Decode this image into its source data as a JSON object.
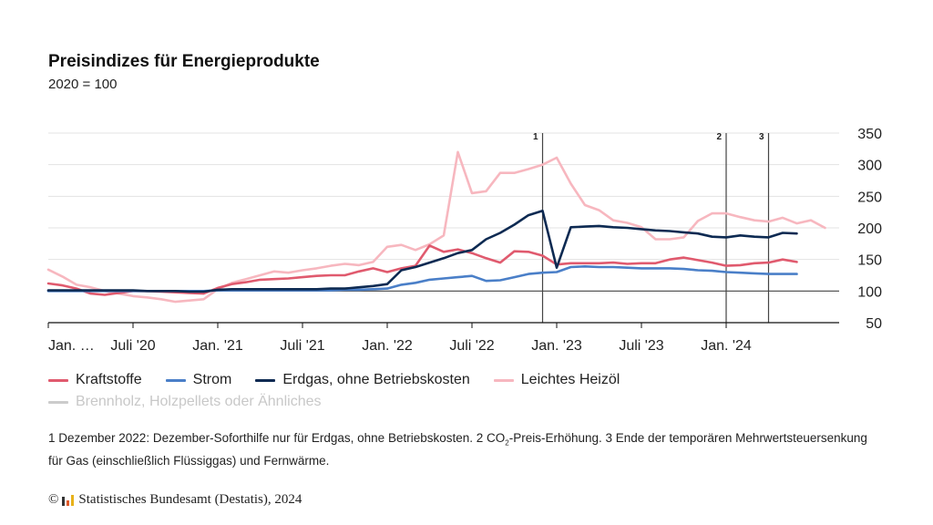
{
  "title": "Preisindizes für Energieprodukte",
  "subtitle": "2020 = 100",
  "legend": [
    {
      "label": "Kraftstoffe",
      "color": "#e05a6e"
    },
    {
      "label": "Strom",
      "color": "#4a7fc8"
    },
    {
      "label": "Erdgas, ohne Betriebskosten",
      "color": "#0d2a52"
    },
    {
      "label": "Leichtes Heizöl",
      "color": "#f7b7bf"
    },
    {
      "label": "Brennholz, Holzpellets oder Ähnliches",
      "color": "#cccccc"
    }
  ],
  "footnote": {
    "part1": "1 Dezember 2022: Dezember-Soforthilfe nur für Erdgas, ohne Betriebskosten. 2 CO",
    "sub": "2",
    "part2": "-Preis-Erhöhung. 3 Ende der temporären Mehrwertsteuersenkung für Gas (einschließlich Flüssiggas) und Fernwärme."
  },
  "source": {
    "copyright": "©",
    "text": "Statistisches Bundesamt (Destatis), 2024"
  },
  "chart_data": {
    "type": "line",
    "x_start": "2020-01",
    "x_ticks": [
      {
        "label": "Jan. …",
        "month": 0
      },
      {
        "label": "Juli '20",
        "month": 6
      },
      {
        "label": "Jan. '21",
        "month": 12
      },
      {
        "label": "Juli '21",
        "month": 18
      },
      {
        "label": "Jan. '22",
        "month": 24
      },
      {
        "label": "Juli '22",
        "month": 30
      },
      {
        "label": "Jan. '23",
        "month": 36
      },
      {
        "label": "Juli '23",
        "month": 42
      },
      {
        "label": "Jan. '24",
        "month": 48
      }
    ],
    "ylim": [
      50,
      350
    ],
    "yticks": [
      50,
      100,
      150,
      200,
      250,
      300,
      350
    ],
    "grid": true,
    "annotations": [
      {
        "label": "1",
        "month": 35
      },
      {
        "label": "2",
        "month": 48
      },
      {
        "label": "3",
        "month": 51
      }
    ],
    "series": [
      {
        "name": "Leichtes Heizöl",
        "color": "#f7b7bf",
        "values": [
          134,
          123,
          110,
          106,
          100,
          96,
          92,
          90,
          87,
          83,
          85,
          87,
          103,
          113,
          119,
          125,
          131,
          129,
          133,
          136,
          140,
          143,
          141,
          146,
          170,
          173,
          165,
          174,
          188,
          320,
          255,
          258,
          287,
          287,
          293,
          300,
          311,
          270,
          236,
          228,
          212,
          208,
          201,
          182,
          182,
          185,
          211,
          223,
          223,
          217,
          212,
          210,
          216,
          207,
          212,
          200
        ]
      },
      {
        "name": "Kraftstoffe",
        "color": "#e05a6e",
        "values": [
          112,
          109,
          104,
          96,
          94,
          97,
          100,
          100,
          99,
          98,
          97,
          96,
          105,
          111,
          114,
          118,
          119,
          120,
          122,
          124,
          125,
          125,
          131,
          136,
          130,
          136,
          140,
          172,
          162,
          166,
          160,
          152,
          145,
          163,
          162,
          156,
          142,
          144,
          144,
          144,
          145,
          143,
          144,
          144,
          150,
          153,
          149,
          145,
          140,
          141,
          144,
          145,
          150,
          146
        ]
      },
      {
        "name": "Strom",
        "color": "#4a7fc8",
        "values": [
          100,
          100,
          100,
          100,
          100,
          100,
          100,
          100,
          100,
          100,
          100,
          100,
          101,
          101,
          101,
          101,
          101,
          101,
          101,
          101,
          101,
          102,
          102,
          103,
          104,
          110,
          113,
          118,
          120,
          122,
          124,
          116,
          117,
          122,
          127,
          129,
          130,
          138,
          139,
          138,
          138,
          137,
          136,
          136,
          136,
          135,
          133,
          132,
          130,
          129,
          128,
          127,
          127,
          127
        ]
      },
      {
        "name": "Erdgas, ohne Betriebskosten",
        "color": "#0d2a52",
        "values": [
          101,
          101,
          101,
          101,
          101,
          101,
          101,
          100,
          100,
          100,
          99,
          99,
          102,
          103,
          103,
          103,
          103,
          103,
          103,
          103,
          104,
          104,
          106,
          108,
          111,
          133,
          138,
          145,
          152,
          160,
          165,
          182,
          192,
          205,
          220,
          227,
          137,
          201,
          202,
          203,
          201,
          200,
          198,
          196,
          195,
          193,
          191,
          186,
          185,
          188,
          186,
          185,
          192,
          191
        ]
      },
      {
        "name": "Brennholz, Holzpellets oder Ähnliches",
        "color": "#cccccc",
        "values": []
      }
    ]
  }
}
